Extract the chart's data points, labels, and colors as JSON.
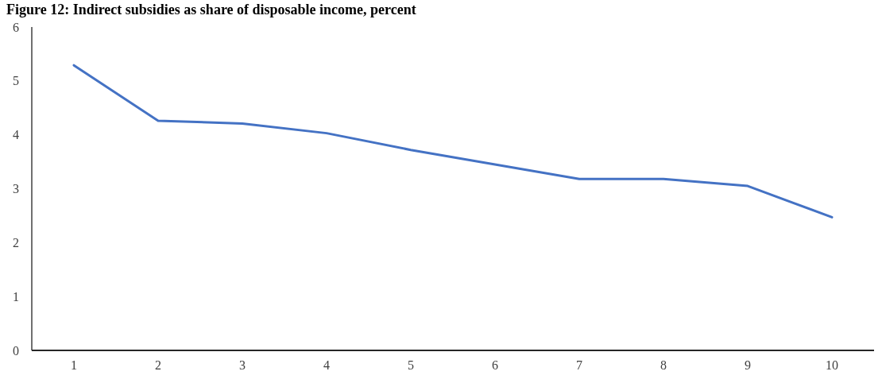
{
  "chart_data": {
    "type": "line",
    "title": "Figure 12: Indirect subsidies as share of disposable income, percent",
    "categories": [
      "1",
      "2",
      "3",
      "4",
      "5",
      "6",
      "7",
      "8",
      "9",
      "10"
    ],
    "series": [
      {
        "color": "#4472c4",
        "values": [
          5.29,
          4.26,
          4.21,
          4.03,
          3.72,
          3.45,
          3.18,
          3.18,
          3.05,
          2.47
        ]
      }
    ],
    "ylim": [
      0,
      6
    ],
    "yticks": [
      0,
      1,
      2,
      3,
      4,
      5,
      6
    ],
    "grid": false
  }
}
